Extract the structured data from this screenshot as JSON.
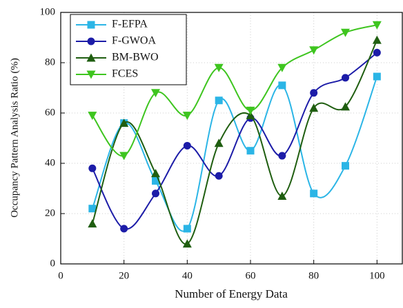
{
  "chart_data": {
    "type": "line",
    "smooth": true,
    "xlabel": "Number of Energy Data",
    "ylabel": "Occupancy Pattern Analysis Ratio (%)",
    "x": [
      10,
      20,
      30,
      40,
      50,
      60,
      70,
      80,
      90,
      100
    ],
    "series": [
      {
        "name": "F-EFPA",
        "color": "#2bb5e6",
        "marker": "square",
        "values": [
          22,
          56,
          33,
          14,
          65,
          45,
          71,
          28,
          39,
          74.5
        ]
      },
      {
        "name": "F-GWOA",
        "color": "#1c1ca8",
        "marker": "circle",
        "values": [
          38,
          14,
          28,
          47,
          35,
          58,
          43,
          68,
          74,
          84
        ]
      },
      {
        "name": "BM-BWO",
        "color": "#1f5e10",
        "marker": "triangle",
        "values": [
          16,
          56,
          36,
          8,
          48,
          59,
          27,
          62,
          62.5,
          89
        ]
      },
      {
        "name": "FCES",
        "color": "#3ec51f",
        "marker": "triangle-down",
        "values": [
          59,
          43,
          68,
          59,
          78,
          61,
          78,
          85,
          92,
          95
        ]
      }
    ],
    "xlim": [
      0,
      108
    ],
    "xticks": [
      0,
      20,
      40,
      60,
      80,
      100
    ],
    "ylim": [
      0,
      100
    ],
    "yticks": [
      0,
      20,
      40,
      60,
      80,
      100
    ],
    "grid": true,
    "legend": "upper-left"
  }
}
